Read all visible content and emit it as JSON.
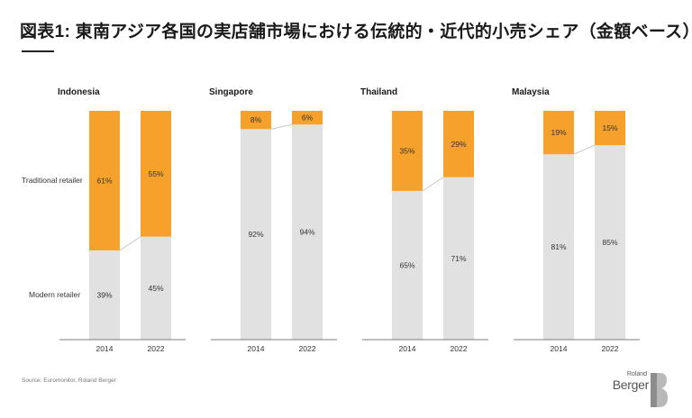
{
  "title": "図表1: 東南アジア各国の実店舗市場における伝統的・近代的小売シェア（金額ベース）",
  "row_labels": {
    "traditional": "Traditional retailer",
    "modern": "Modern retailer"
  },
  "source": "Source: Euromonitor, Roland Berger",
  "logo": {
    "line1": "Roland",
    "line2": "Berger",
    "monogram": "B"
  },
  "colors": {
    "traditional": "#F6A12B",
    "modern": "#E1E1E1",
    "connector": "#bbbbbb"
  },
  "chart_data": {
    "type": "bar",
    "stacked": true,
    "categories": [
      "2014",
      "2022"
    ],
    "series_names": [
      "Modern retailer",
      "Traditional retailer"
    ],
    "ylim": [
      0,
      100
    ],
    "unit": "%",
    "panels": [
      {
        "title": "Indonesia",
        "modern": [
          39,
          45
        ],
        "traditional": [
          61,
          55
        ],
        "labels": {
          "modern": [
            "39%",
            "45%"
          ],
          "traditional": [
            "61%",
            "55%"
          ]
        }
      },
      {
        "title": "Singapore",
        "modern": [
          92,
          94
        ],
        "traditional": [
          8,
          6
        ],
        "labels": {
          "modern": [
            "92%",
            "94%"
          ],
          "traditional": [
            "8%",
            "6%"
          ]
        }
      },
      {
        "title": "Thailand",
        "modern": [
          65,
          71
        ],
        "traditional": [
          35,
          29
        ],
        "labels": {
          "modern": [
            "65%",
            "71%"
          ],
          "traditional": [
            "35%",
            "29%"
          ]
        }
      },
      {
        "title": "Malaysia",
        "modern": [
          81,
          85
        ],
        "traditional": [
          19,
          15
        ],
        "labels": {
          "modern": [
            "81%",
            "85%"
          ],
          "traditional": [
            "19%",
            "15%"
          ]
        }
      }
    ]
  }
}
